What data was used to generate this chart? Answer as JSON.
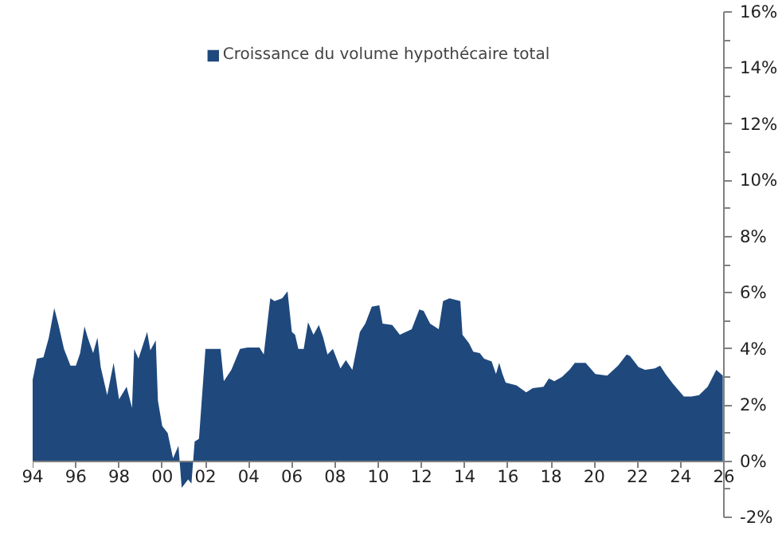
{
  "chart_data": {
    "type": "area",
    "legend": "top",
    "x": [
      1994.0,
      1994.2,
      1994.5,
      1994.75,
      1995.0,
      1995.2,
      1995.45,
      1995.75,
      1996.0,
      1996.2,
      1996.4,
      1996.55,
      1996.8,
      1997.0,
      1997.15,
      1997.45,
      1997.75,
      1998.0,
      1998.35,
      1998.6,
      1998.7,
      1998.9,
      1999.3,
      1999.45,
      1999.7,
      1999.8,
      2000.0,
      2000.25,
      2000.5,
      2000.75,
      2000.9,
      2001.2,
      2001.35,
      2001.5,
      2001.7,
      2002.0,
      2002.7,
      2002.85,
      2003.2,
      2003.6,
      2003.95,
      2004.5,
      2004.7,
      2005.0,
      2005.2,
      2005.55,
      2005.8,
      2006.0,
      2006.15,
      2006.3,
      2006.55,
      2006.75,
      2007.0,
      2007.25,
      2007.45,
      2007.65,
      2007.9,
      2008.25,
      2008.5,
      2008.8,
      2009.15,
      2009.4,
      2009.7,
      2010.05,
      2010.2,
      2010.65,
      2011.0,
      2011.55,
      2011.9,
      2012.1,
      2012.4,
      2012.8,
      2013.0,
      2013.3,
      2013.8,
      2013.9,
      2014.2,
      2014.4,
      2014.7,
      2014.9,
      2015.25,
      2015.45,
      2015.6,
      2015.75,
      2015.9,
      2016.4,
      2016.85,
      2017.15,
      2017.65,
      2017.9,
      2018.15,
      2018.5,
      2018.85,
      2019.1,
      2019.6,
      2020.05,
      2020.6,
      2021.1,
      2021.5,
      2021.65,
      2022.05,
      2022.35,
      2022.8,
      2023.05,
      2023.3,
      2023.65,
      2024.15,
      2024.5,
      2024.85,
      2025.25,
      2025.65,
      2025.95
    ],
    "series": [
      {
        "name": "Croissance du volume hypothécaire total",
        "color": "#1f497d",
        "values": [
          2.9,
          3.65,
          3.7,
          4.4,
          5.45,
          4.85,
          4.0,
          3.4,
          3.4,
          3.85,
          4.8,
          4.4,
          3.85,
          4.4,
          3.35,
          2.35,
          3.5,
          2.2,
          2.65,
          1.9,
          4.0,
          3.65,
          4.6,
          3.95,
          4.3,
          2.15,
          1.25,
          1.0,
          0.1,
          0.55,
          -0.95,
          -0.65,
          -0.8,
          0.7,
          0.8,
          4.0,
          4.0,
          2.85,
          3.25,
          4.0,
          4.05,
          4.05,
          3.8,
          5.8,
          5.7,
          5.8,
          6.05,
          4.6,
          4.5,
          4.0,
          4.0,
          4.95,
          4.5,
          4.85,
          4.4,
          3.8,
          4.0,
          3.3,
          3.6,
          3.25,
          4.6,
          4.9,
          5.5,
          5.55,
          4.9,
          4.85,
          4.5,
          4.7,
          5.4,
          5.35,
          4.9,
          4.7,
          5.7,
          5.8,
          5.7,
          4.5,
          4.2,
          3.9,
          3.85,
          3.65,
          3.55,
          3.1,
          3.5,
          3.1,
          2.8,
          2.7,
          2.45,
          2.6,
          2.65,
          2.95,
          2.85,
          3.0,
          3.25,
          3.5,
          3.5,
          3.1,
          3.05,
          3.4,
          3.8,
          3.75,
          3.35,
          3.25,
          3.3,
          3.4,
          3.1,
          2.75,
          2.3,
          2.3,
          2.35,
          2.65,
          3.25,
          3.05
        ]
      }
    ],
    "xlim": [
      1994,
      2026
    ],
    "xticks": [
      {
        "value": 1994,
        "label": "94"
      },
      {
        "value": 1996,
        "label": "96"
      },
      {
        "value": 1998,
        "label": "98"
      },
      {
        "value": 2000,
        "label": "00"
      },
      {
        "value": 2002,
        "label": "02"
      },
      {
        "value": 2004,
        "label": "04"
      },
      {
        "value": 2006,
        "label": "06"
      },
      {
        "value": 2008,
        "label": "08"
      },
      {
        "value": 2010,
        "label": "10"
      },
      {
        "value": 2012,
        "label": "12"
      },
      {
        "value": 2014,
        "label": "14"
      },
      {
        "value": 2016,
        "label": "16"
      },
      {
        "value": 2018,
        "label": "18"
      },
      {
        "value": 2020,
        "label": "20"
      },
      {
        "value": 2022,
        "label": "22"
      },
      {
        "value": 2024,
        "label": "24"
      },
      {
        "value": 2026,
        "label": "26"
      }
    ],
    "ylim": [
      -2,
      16
    ],
    "yticks": [
      {
        "value": -2,
        "label": "-2%"
      },
      {
        "value": 0,
        "label": "0%"
      },
      {
        "value": 2,
        "label": "2%"
      },
      {
        "value": 4,
        "label": "4%"
      },
      {
        "value": 6,
        "label": "6%"
      },
      {
        "value": 8,
        "label": "8%"
      },
      {
        "value": 10,
        "label": "10%"
      },
      {
        "value": 12,
        "label": "12%"
      },
      {
        "value": 14,
        "label": "14%"
      },
      {
        "value": 16,
        "label": "16%"
      }
    ]
  }
}
